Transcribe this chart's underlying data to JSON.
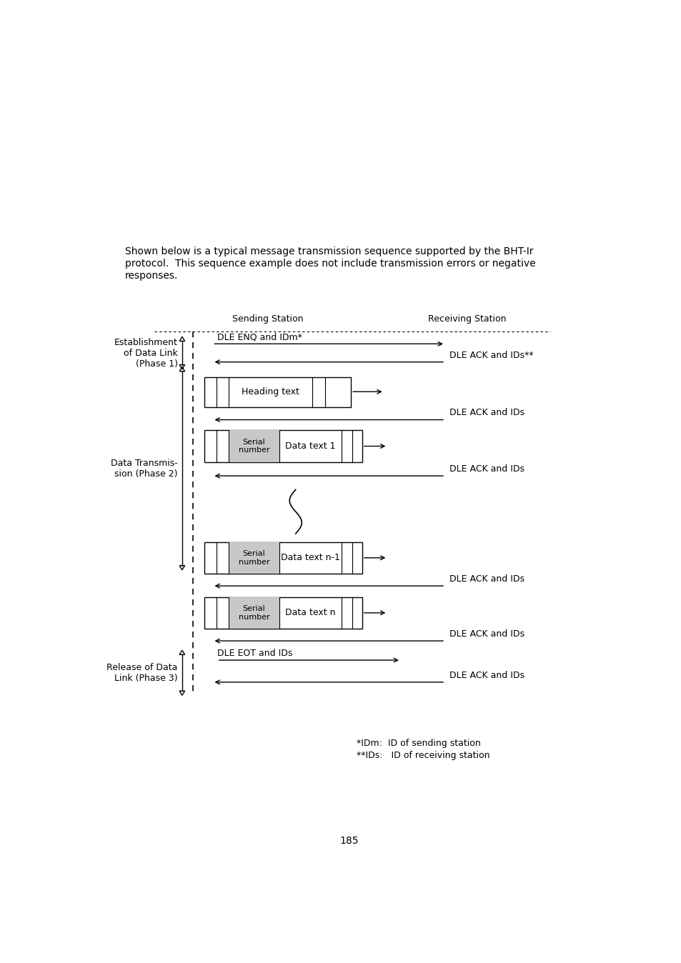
{
  "intro_text_line1": "Shown below is a typical message transmission sequence supported by the BHT-Ir",
  "intro_text_line2": "protocol.  This sequence example does not include transmission errors or negative",
  "intro_text_line3": "responses.",
  "sending_station_label": "Sending Station",
  "receiving_station_label": "Receiving Station",
  "phase1_label": "Establishment\nof Data Link\n(Phase 1)",
  "phase2_label": "Data Transmis-\nsion (Phase 2)",
  "phase3_label": "Release of Data\nLink (Phase 3)",
  "note1": "*IDm:  ID of sending station",
  "note2": "**IDs:   ID of receiving station",
  "page_number": "185",
  "bg_color": "#ffffff",
  "line_color": "#000000",
  "text_color": "#000000",
  "font_size": 10,
  "small_font_size": 9,
  "diagram_font_size": 9
}
